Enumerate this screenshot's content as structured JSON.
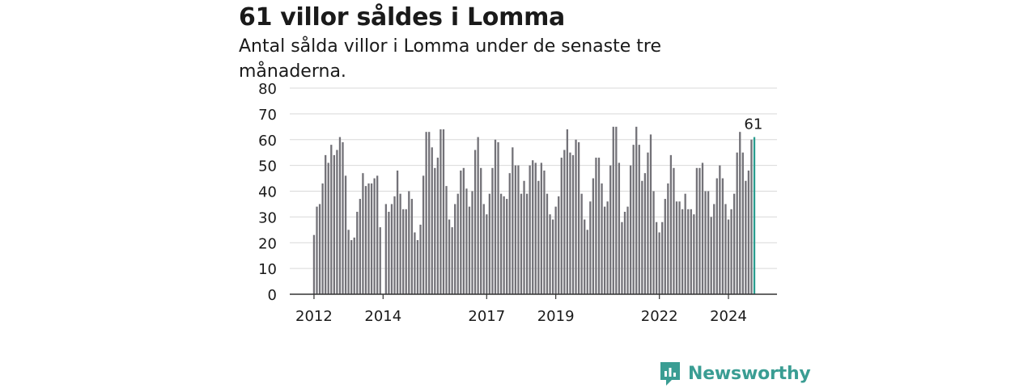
{
  "header": {
    "title": "61 villor såldes i Lomma",
    "subtitle": "Antal sålda villor i Lomma under de senaste tre månaderna."
  },
  "brand": {
    "name": "Newsworthy",
    "icon": "newsworthy-logo-icon",
    "color": "#3a9d93"
  },
  "colors": {
    "bar": "#737278",
    "highlight": "#2a9d8f",
    "grid": "#d9d9d9",
    "axis": "#333333"
  },
  "chart_data": {
    "type": "bar",
    "title": "61 villor såldes i Lomma",
    "subtitle": "Antal sålda villor i Lomma under de senaste tre månaderna.",
    "xlabel": "",
    "ylabel": "",
    "ylim": [
      0,
      80
    ],
    "yticks": [
      0,
      10,
      20,
      30,
      40,
      50,
      60,
      70,
      80
    ],
    "xticks": [
      "2012",
      "2014",
      "2017",
      "2019",
      "2022",
      "2024"
    ],
    "grid": true,
    "legend": "none",
    "highlight_label": "61",
    "values": [
      23,
      34,
      35,
      43,
      54,
      51,
      58,
      54,
      56,
      61,
      59,
      46,
      25,
      21,
      22,
      32,
      37,
      47,
      42,
      43,
      43,
      45,
      46,
      26,
      null,
      35,
      32,
      35,
      38,
      48,
      39,
      33,
      33,
      40,
      37,
      24,
      21,
      27,
      46,
      63,
      63,
      57,
      49,
      53,
      64,
      64,
      42,
      29,
      26,
      35,
      39,
      48,
      49,
      41,
      34,
      40,
      56,
      61,
      49,
      35,
      31,
      39,
      49,
      60,
      59,
      39,
      38,
      37,
      47,
      57,
      50,
      50,
      39,
      44,
      39,
      50,
      52,
      51,
      44,
      51,
      48,
      39,
      31,
      29,
      34,
      38,
      53,
      56,
      64,
      55,
      54,
      60,
      59,
      39,
      29,
      25,
      36,
      45,
      53,
      53,
      43,
      34,
      36,
      50,
      65,
      65,
      51,
      28,
      32,
      34,
      50,
      58,
      65,
      58,
      44,
      47,
      55,
      62,
      40,
      28,
      24,
      28,
      37,
      43,
      54,
      49,
      36,
      36,
      33,
      39,
      33,
      33,
      31,
      49,
      49,
      51,
      40,
      40,
      30,
      35,
      45,
      50,
      45,
      35,
      29,
      33,
      39,
      55,
      63,
      55,
      44,
      48,
      60,
      61
    ]
  }
}
